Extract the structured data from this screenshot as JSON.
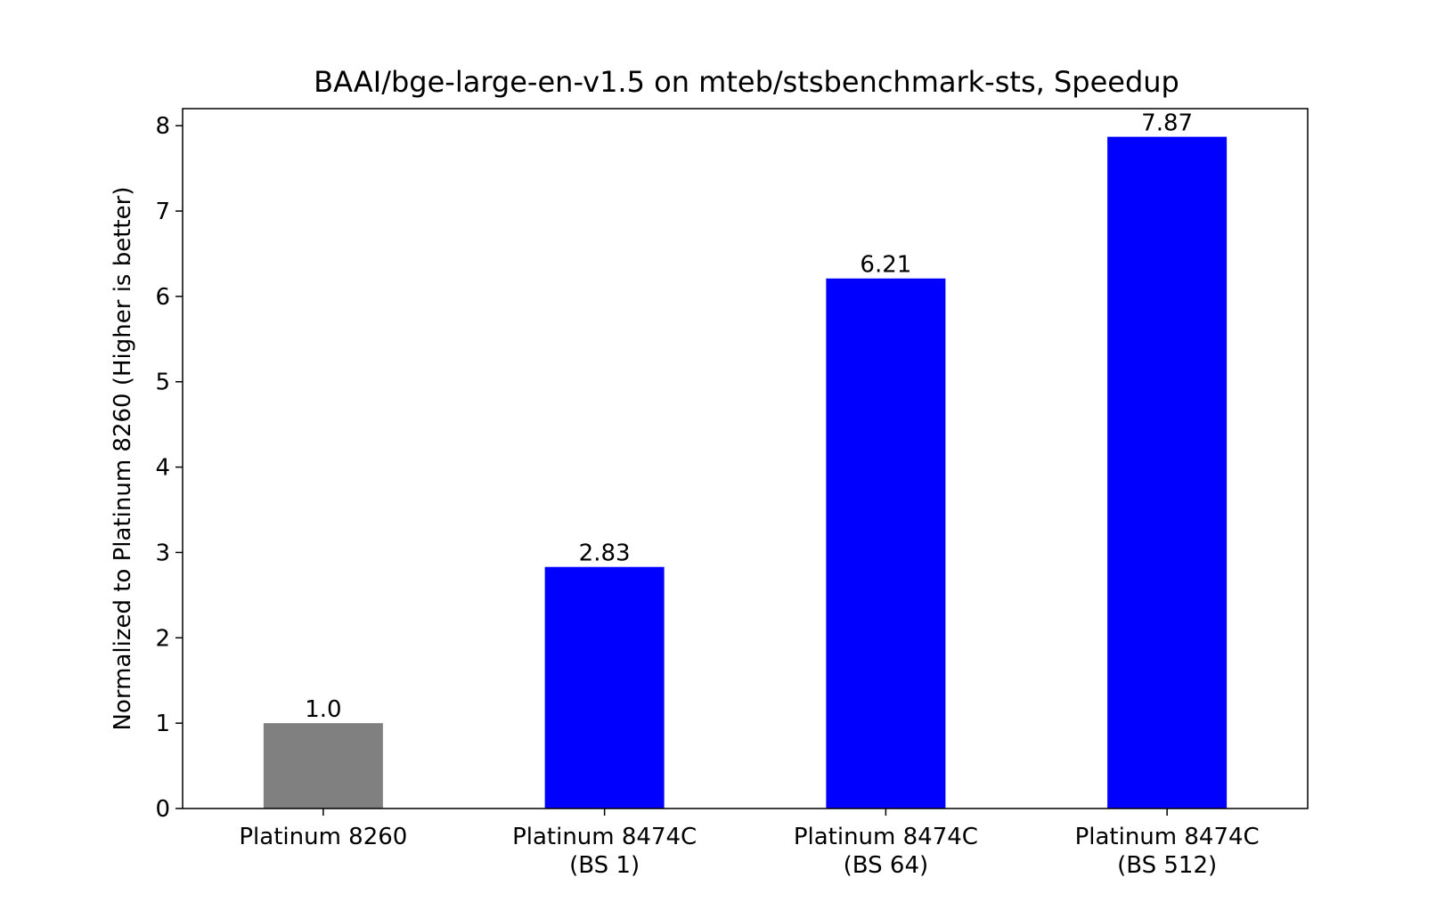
{
  "chart_data": {
    "type": "bar",
    "title": "BAAI/bge-large-en-v1.5 on mteb/stsbenchmark-sts, Speedup",
    "xlabel": "",
    "ylabel": "Normalized to Platinum 8260 (Higher is better)",
    "ylim": [
      0,
      8.2
    ],
    "yticks": [
      0,
      1,
      2,
      3,
      4,
      5,
      6,
      7,
      8
    ],
    "grid": false,
    "categories": [
      [
        "Platinum 8260"
      ],
      [
        "Platinum 8474C",
        "(BS 1)"
      ],
      [
        "Platinum 8474C",
        "(BS 64)"
      ],
      [
        "Platinum 8474C",
        "(BS 512)"
      ]
    ],
    "values": [
      1.0,
      2.83,
      6.21,
      7.87
    ],
    "value_labels": [
      "1.0",
      "2.83",
      "6.21",
      "7.87"
    ],
    "bar_colors": [
      "#808080",
      "#0000ff",
      "#0000ff",
      "#0000ff"
    ]
  }
}
